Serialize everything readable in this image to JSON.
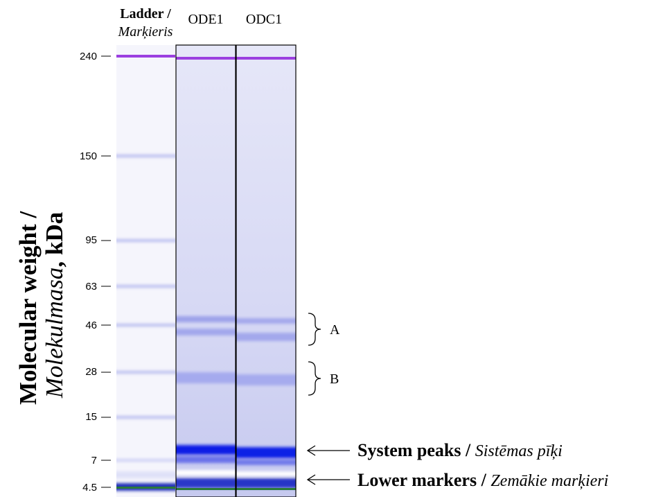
{
  "y_axis_title": {
    "line1": "Molecular weight /",
    "line2_italic": "Molekulmasa",
    "line2_rest": ", kDa"
  },
  "lanes": {
    "ladder_bold": "Ladder /",
    "ladder_italic": "Marķieris",
    "lane2": "ODE1",
    "lane3": "ODC1"
  },
  "ticks": [
    "240",
    "150",
    "95",
    "63",
    "46",
    "28",
    "15",
    "7",
    "4.5"
  ],
  "annotations": {
    "brace_a": "A",
    "brace_b": "B",
    "system_peaks_bold": "System peaks /",
    "system_peaks_italic": "Sistēmas pīķi",
    "lower_markers_bold": "Lower markers /",
    "lower_markers_italic": "Zemākie marķieri"
  }
}
